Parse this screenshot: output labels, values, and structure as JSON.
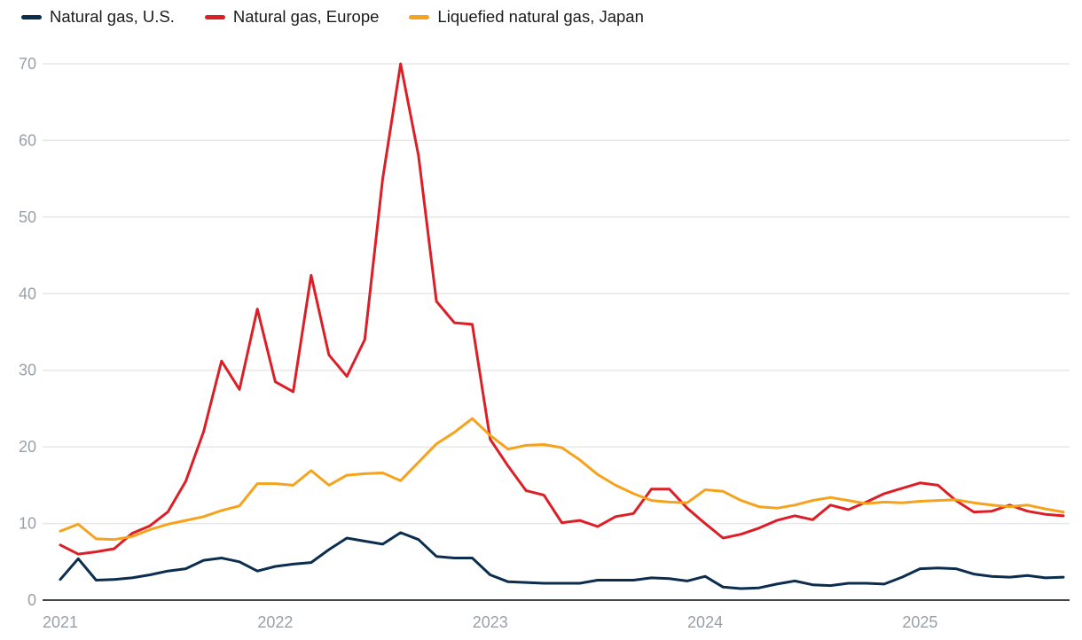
{
  "chart_data": {
    "type": "line",
    "title": "",
    "xlabel": "",
    "ylabel": "",
    "ylim": [
      0,
      70
    ],
    "yticks": [
      0,
      10,
      20,
      30,
      40,
      50,
      60,
      70
    ],
    "xtick_labels": [
      "2021",
      "2022",
      "2023",
      "2024",
      "2025"
    ],
    "grid": "horizontal",
    "legend_position": "top-left",
    "x": [
      "2021-01",
      "2021-02",
      "2021-03",
      "2021-04",
      "2021-05",
      "2021-06",
      "2021-07",
      "2021-08",
      "2021-09",
      "2021-10",
      "2021-11",
      "2021-12",
      "2022-01",
      "2022-02",
      "2022-03",
      "2022-04",
      "2022-05",
      "2022-06",
      "2022-07",
      "2022-08",
      "2022-09",
      "2022-10",
      "2022-11",
      "2022-12",
      "2023-01",
      "2023-02",
      "2023-03",
      "2023-04",
      "2023-05",
      "2023-06",
      "2023-07",
      "2023-08",
      "2023-09",
      "2023-10",
      "2023-11",
      "2023-12",
      "2024-01",
      "2024-02",
      "2024-03",
      "2024-04",
      "2024-05",
      "2024-06",
      "2024-07",
      "2024-08",
      "2024-09",
      "2024-10",
      "2024-11",
      "2024-12",
      "2025-01",
      "2025-02",
      "2025-03",
      "2025-04",
      "2025-05",
      "2025-06",
      "2025-07",
      "2025-08",
      "2025-09"
    ],
    "series": [
      {
        "id": "us",
        "name": "Natural gas, U.S.",
        "color": "#0c2d4d",
        "values": [
          2.7,
          5.4,
          2.6,
          2.7,
          2.9,
          3.3,
          3.8,
          4.1,
          5.2,
          5.5,
          5.0,
          3.8,
          4.4,
          4.7,
          4.9,
          6.6,
          8.1,
          7.7,
          7.3,
          8.8,
          7.9,
          5.7,
          5.5,
          5.5,
          3.3,
          2.4,
          2.3,
          2.2,
          2.2,
          2.2,
          2.6,
          2.6,
          2.6,
          2.9,
          2.8,
          2.5,
          3.1,
          1.7,
          1.5,
          1.6,
          2.1,
          2.5,
          2.0,
          1.9,
          2.2,
          2.2,
          2.1,
          3.0,
          4.1,
          4.2,
          4.1,
          3.4,
          3.1,
          3.0,
          3.2,
          2.9,
          3.0
        ]
      },
      {
        "id": "europe",
        "name": "Natural gas, Europe",
        "color": "#dc1f26",
        "values": [
          7.2,
          6.0,
          6.3,
          6.7,
          8.7,
          9.7,
          11.5,
          15.5,
          22.0,
          31.2,
          27.5,
          38.0,
          28.5,
          27.2,
          42.4,
          32.0,
          29.2,
          34.0,
          55.0,
          70.0,
          58.0,
          39.0,
          36.2,
          36.0,
          21.0,
          17.5,
          14.3,
          13.7,
          10.1,
          10.4,
          9.6,
          10.9,
          11.3,
          14.5,
          14.5,
          12.0,
          10.0,
          8.1,
          8.6,
          9.4,
          10.4,
          11.0,
          10.5,
          12.4,
          11.8,
          12.8,
          13.9,
          14.6,
          15.3,
          15.0,
          13.0,
          11.5,
          11.6,
          12.4,
          11.6,
          11.2,
          11.0
        ]
      },
      {
        "id": "japan",
        "name": "Liquefied natural gas, Japan",
        "color": "#f5a31c",
        "values": [
          9.0,
          9.9,
          8.0,
          7.9,
          8.3,
          9.2,
          9.9,
          10.4,
          10.9,
          11.7,
          12.3,
          15.2,
          15.2,
          15.0,
          16.9,
          15.0,
          16.3,
          16.5,
          16.6,
          15.6,
          18.0,
          20.4,
          21.9,
          23.7,
          21.5,
          19.7,
          20.2,
          20.3,
          19.9,
          18.3,
          16.4,
          15.0,
          13.9,
          13.0,
          12.8,
          12.7,
          14.4,
          14.2,
          13.0,
          12.2,
          12.0,
          12.4,
          13.0,
          13.4,
          13.0,
          12.6,
          12.8,
          12.7,
          12.9,
          13.0,
          13.1,
          12.7,
          12.4,
          12.2,
          12.4,
          11.9,
          11.5
        ]
      }
    ]
  }
}
